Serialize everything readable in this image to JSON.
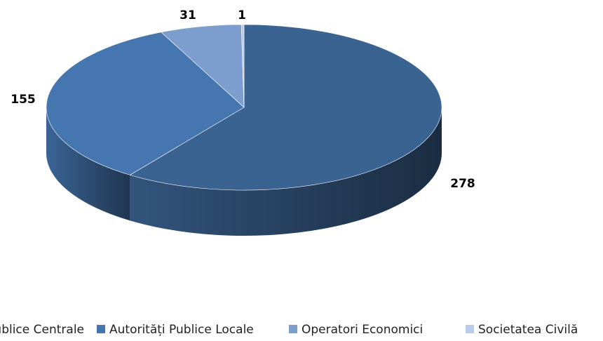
{
  "chart_data": {
    "type": "pie",
    "categories": [
      "Autorități Publice Centrale",
      "Autorități Publice Locale",
      "Operatori Economici",
      "Societatea Civilă"
    ],
    "values": [
      278,
      155,
      31,
      1
    ],
    "colors": [
      "#3b6392",
      "#4676b0",
      "#7e9dcf",
      "#b9cbe8"
    ],
    "legend": "bottom"
  }
}
